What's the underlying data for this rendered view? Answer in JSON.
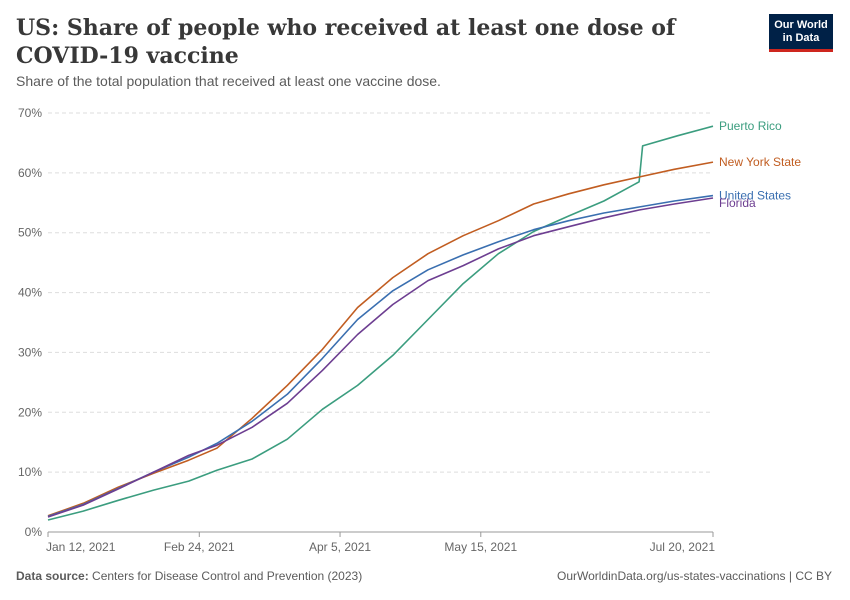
{
  "header": {
    "title": "US: Share of people who received at least one dose of COVID-19 vaccine",
    "subtitle": "Share of the total population that received at least one vaccine dose."
  },
  "logo": {
    "line1": "Our World",
    "line2": "in Data",
    "bg": "#002147",
    "accent": "#ce261e"
  },
  "footer": {
    "source_label": "Data source:",
    "source_text": "Centers for Disease Control and Prevention (2023)",
    "link": "OurWorldinData.org/us-states-vaccinations | CC BY"
  },
  "chart_data": {
    "type": "line",
    "yunit": "%",
    "ylim": [
      0,
      70
    ],
    "yticks": [
      0,
      10,
      20,
      30,
      40,
      50,
      60,
      70
    ],
    "ytick_labels": [
      "0%",
      "10%",
      "20%",
      "30%",
      "40%",
      "50%",
      "60%",
      "70%"
    ],
    "xlim": [
      "2021-01-12",
      "2021-07-20"
    ],
    "xticks": [
      "2021-01-12",
      "2021-02-24",
      "2021-04-05",
      "2021-05-15",
      "2021-07-20"
    ],
    "xtick_labels": [
      "Jan 12, 2021",
      "Feb 24, 2021",
      "Apr 5, 2021",
      "May 15, 2021",
      "Jul 20, 2021"
    ],
    "grid": true,
    "legend": "right (line-end labels)",
    "series": [
      {
        "name": "Puerto Rico",
        "color": "#3b9d7f",
        "points": [
          [
            "2021-01-12",
            2.0
          ],
          [
            "2021-01-22",
            3.5
          ],
          [
            "2021-02-01",
            5.3
          ],
          [
            "2021-02-11",
            7.0
          ],
          [
            "2021-02-21",
            8.5
          ],
          [
            "2021-03-01",
            10.3
          ],
          [
            "2021-03-11",
            12.2
          ],
          [
            "2021-03-21",
            15.5
          ],
          [
            "2021-03-31",
            20.5
          ],
          [
            "2021-04-10",
            24.5
          ],
          [
            "2021-04-20",
            29.5
          ],
          [
            "2021-04-30",
            35.5
          ],
          [
            "2021-05-10",
            41.5
          ],
          [
            "2021-05-20",
            46.5
          ],
          [
            "2021-05-30",
            50.2
          ],
          [
            "2021-06-09",
            52.8
          ],
          [
            "2021-06-19",
            55.3
          ],
          [
            "2021-06-29",
            58.5
          ],
          [
            "2021-06-30",
            64.5
          ],
          [
            "2021-07-10",
            66.2
          ],
          [
            "2021-07-20",
            67.8
          ]
        ]
      },
      {
        "name": "New York State",
        "color": "#c15d21",
        "points": [
          [
            "2021-01-12",
            2.7
          ],
          [
            "2021-01-22",
            4.8
          ],
          [
            "2021-02-01",
            7.5
          ],
          [
            "2021-02-11",
            9.8
          ],
          [
            "2021-02-21",
            12.0
          ],
          [
            "2021-03-01",
            14.0
          ],
          [
            "2021-03-11",
            19.0
          ],
          [
            "2021-03-21",
            24.5
          ],
          [
            "2021-03-31",
            30.5
          ],
          [
            "2021-04-10",
            37.5
          ],
          [
            "2021-04-20",
            42.5
          ],
          [
            "2021-04-30",
            46.5
          ],
          [
            "2021-05-10",
            49.5
          ],
          [
            "2021-05-20",
            52.0
          ],
          [
            "2021-05-30",
            54.8
          ],
          [
            "2021-06-09",
            56.5
          ],
          [
            "2021-06-19",
            58.0
          ],
          [
            "2021-06-29",
            59.3
          ],
          [
            "2021-07-09",
            60.6
          ],
          [
            "2021-07-20",
            61.8
          ]
        ]
      },
      {
        "name": "United States",
        "color": "#3a6fb0",
        "points": [
          [
            "2021-01-12",
            2.6
          ],
          [
            "2021-01-22",
            4.6
          ],
          [
            "2021-02-01",
            7.3
          ],
          [
            "2021-02-11",
            10.0
          ],
          [
            "2021-02-21",
            12.5
          ],
          [
            "2021-03-01",
            14.8
          ],
          [
            "2021-03-11",
            18.5
          ],
          [
            "2021-03-21",
            23.0
          ],
          [
            "2021-03-31",
            29.0
          ],
          [
            "2021-04-10",
            35.5
          ],
          [
            "2021-04-20",
            40.3
          ],
          [
            "2021-04-30",
            43.8
          ],
          [
            "2021-05-10",
            46.3
          ],
          [
            "2021-05-20",
            48.5
          ],
          [
            "2021-05-30",
            50.5
          ],
          [
            "2021-06-09",
            52.0
          ],
          [
            "2021-06-19",
            53.3
          ],
          [
            "2021-06-29",
            54.3
          ],
          [
            "2021-07-09",
            55.3
          ],
          [
            "2021-07-20",
            56.2
          ]
        ]
      },
      {
        "name": "Florida",
        "color": "#6d3e91",
        "points": [
          [
            "2021-01-12",
            2.5
          ],
          [
            "2021-01-22",
            4.5
          ],
          [
            "2021-02-01",
            7.2
          ],
          [
            "2021-02-11",
            10.0
          ],
          [
            "2021-02-21",
            12.8
          ],
          [
            "2021-03-01",
            14.5
          ],
          [
            "2021-03-11",
            17.5
          ],
          [
            "2021-03-21",
            21.5
          ],
          [
            "2021-03-31",
            27.0
          ],
          [
            "2021-04-10",
            33.0
          ],
          [
            "2021-04-20",
            38.0
          ],
          [
            "2021-04-30",
            42.0
          ],
          [
            "2021-05-10",
            44.5
          ],
          [
            "2021-05-20",
            47.3
          ],
          [
            "2021-05-30",
            49.5
          ],
          [
            "2021-06-09",
            51.0
          ],
          [
            "2021-06-19",
            52.5
          ],
          [
            "2021-06-29",
            53.8
          ],
          [
            "2021-07-09",
            54.8
          ],
          [
            "2021-07-20",
            55.8
          ]
        ]
      }
    ]
  }
}
